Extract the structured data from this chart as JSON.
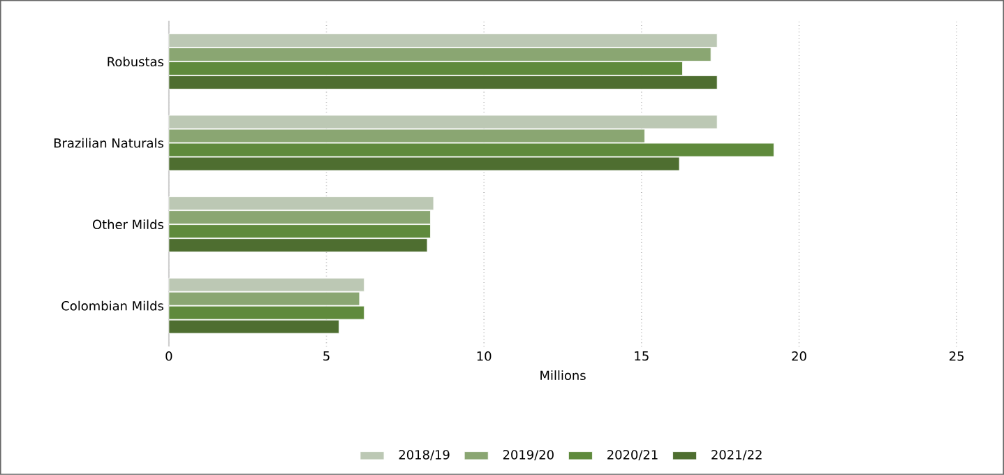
{
  "chart_data": {
    "type": "bar",
    "orientation": "horizontal",
    "xlabel": "Millions",
    "categories": [
      "Robustas",
      "Brazilian Naturals",
      "Other Milds",
      "Colombian Milds"
    ],
    "series": [
      {
        "name": "2018/19",
        "color": "#bcc8b4",
        "values": [
          17.4,
          17.4,
          8.4,
          6.2
        ]
      },
      {
        "name": "2019/20",
        "color": "#8aa672",
        "values": [
          17.2,
          15.1,
          8.3,
          6.05
        ]
      },
      {
        "name": "2020/21",
        "color": "#5f8a3c",
        "values": [
          16.3,
          19.2,
          8.3,
          6.2
        ]
      },
      {
        "name": "2021/22",
        "color": "#4e6e30",
        "values": [
          17.4,
          16.2,
          8.2,
          5.4
        ]
      }
    ],
    "xlim": [
      0,
      25
    ],
    "xticks": [
      0,
      5,
      10,
      15,
      20,
      25
    ],
    "grid": "x",
    "legend": "bottom"
  }
}
